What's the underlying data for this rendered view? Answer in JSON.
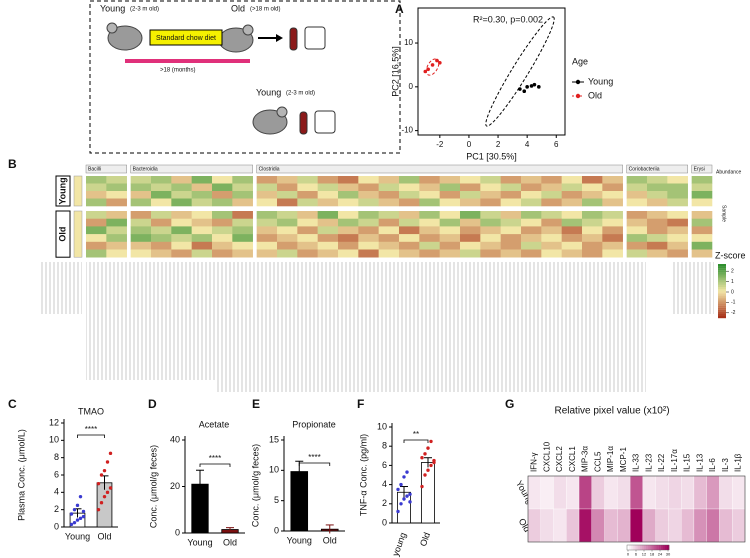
{
  "diagram": {
    "young_top": {
      "name": "Young",
      "age": "(2-3 m old)"
    },
    "old": {
      "name": "Old",
      "age": "(>18 m old)"
    },
    "diet": "Standard chow diet",
    "duration": ">18  (months)",
    "young_bottom": {
      "name": "Young",
      "age": "(2-3 m old)"
    }
  },
  "chart_data": [
    {
      "type": "scatter",
      "label": "A",
      "annotation": "R²=0.30, p=0.002",
      "x_label": "PC1  [30.5%]",
      "y_label": "PC2  [16.5%]",
      "xlim": [
        -3.5,
        6.6
      ],
      "ylim": [
        -11,
        18
      ],
      "xticks": [
        -2,
        0,
        2,
        4,
        6
      ],
      "yticks": [
        -10,
        0,
        10
      ],
      "legend_title": "Age",
      "series": [
        {
          "name": "Young",
          "color": "#000000",
          "x": [
            3.5,
            4.0,
            4.5,
            4.8,
            3.8,
            4.3
          ],
          "y": [
            -0.5,
            0,
            0.5,
            0,
            -1,
            0.2
          ]
        },
        {
          "name": "Old",
          "color": "#e02020",
          "x": [
            -2.8,
            -2.2,
            -2.5,
            -3.0,
            -2.0
          ],
          "y": [
            4,
            6,
            5,
            3.5,
            5.5
          ]
        }
      ]
    },
    {
      "type": "heatmap_groups",
      "label": "B",
      "row_groups": [
        "Young",
        "Old"
      ],
      "legend_title": "Z-score",
      "legend_subtitle": "Abundance",
      "side_label": "Sample",
      "zlim": [
        -2.5,
        2.5
      ],
      "zticks": [
        2,
        1,
        0,
        -1,
        -2
      ],
      "groups": [
        {
          "name": "Bacilli",
          "z": [
            [
              [
                1,
                0.5
              ],
              [
                0.5,
                1
              ],
              [
                -0.5,
                0
              ],
              [
                1,
                -1
              ]
            ],
            [
              [
                0.5,
                -0.5
              ],
              [
                -1,
                1.5
              ],
              [
                1.5,
                0.5
              ],
              [
                0,
                1
              ],
              [
                -1,
                -0.5
              ],
              [
                1,
                0
              ]
            ]
          ]
        },
        {
          "name": "Bacteroidia",
          "z": [
            [
              [
                0.5,
                1,
                -0.5,
                1.5,
                0,
                1
              ],
              [
                1,
                0.5,
                1,
                -0.5,
                1.5,
                0.5
              ],
              [
                -0.5,
                1.5,
                0.5,
                1,
                -1,
                1
              ],
              [
                1,
                0,
                1.5,
                0.5,
                1,
                -0.5
              ]
            ],
            [
              [
                -1,
                0.5,
                -0.5,
                0,
                1,
                -1.5
              ],
              [
                0.5,
                -1,
                0,
                -0.5,
                -1,
                0.5
              ],
              [
                1,
                0.5,
                1.5,
                0,
                0.5,
                1
              ],
              [
                1.5,
                1,
                0.5,
                1,
                0,
                1.5
              ],
              [
                -0.5,
                -1,
                0,
                -1.5,
                -0.5,
                0
              ],
              [
                0,
                -0.5,
                -1,
                0.5,
                -1,
                -0.5
              ]
            ]
          ]
        },
        {
          "name": "Clostridia",
          "z": [
            [
              [
                -1,
                -0.5,
                0.5,
                -1,
                -1.5,
                0,
                -0.5,
                1,
                -1,
                -0.5,
                0,
                0.5,
                -1,
                -0.5,
                -1,
                0,
                -1.5,
                -0.5
              ],
              [
                0.5,
                -1,
                0,
                0.5,
                -0.5,
                -1,
                0.5,
                0,
                -0.5,
                1,
                -1,
                0,
                0.5,
                -1,
                -0.5,
                0.5,
                0,
                -1
              ],
              [
                -0.5,
                0.5,
                -1,
                0,
                1,
                -0.5,
                -1,
                0.5,
                0,
                -1,
                0.5,
                -0.5,
                -1,
                0,
                0.5,
                -1,
                -0.5,
                0
              ],
              [
                0,
                -1.5,
                0.5,
                -0.5,
                0,
                0.5,
                -0.5,
                -1,
                1,
                0,
                -0.5,
                -1,
                0,
                0.5,
                -1,
                -0.5,
                1,
                -0.5
              ]
            ],
            [
              [
                1,
                0.5,
                -0.5,
                1.5,
                0,
                1,
                0.5,
                -0.5,
                1,
                0,
                1.5,
                0.5,
                -0.5,
                1,
                0.5,
                0,
                1,
                0.5
              ],
              [
                0.5,
                1,
                0,
                -0.5,
                1,
                0.5,
                -1,
                0.5,
                0,
                1,
                -0.5,
                1,
                0.5,
                0,
                -1,
                1,
                0.5,
                0
              ],
              [
                -0.5,
                0,
                -1,
                0.5,
                -0.5,
                -1,
                0,
                -1.5,
                -0.5,
                0,
                -1,
                -0.5,
                0,
                -1,
                -0.5,
                -1.5,
                0,
                -1
              ],
              [
                -1,
                -0.5,
                0,
                -1,
                -1.5,
                -0.5,
                -1,
                0,
                -1,
                -0.5,
                -1.5,
                0,
                -1,
                -0.5,
                0,
                -1,
                -0.5,
                -1.5
              ],
              [
                0,
                -1,
                -0.5,
                0,
                -1,
                0,
                -0.5,
                -1,
                0.5,
                -1,
                0,
                -0.5,
                -1,
                0.5,
                -0.5,
                0,
                -1,
                -0.5
              ],
              [
                -0.5,
                0.5,
                -1,
                -0.5,
                0,
                -1.5,
                0,
                -0.5,
                -1,
                -0.5,
                0.5,
                -1,
                -0.5,
                -1,
                0,
                -0.5,
                -1,
                0
              ]
            ]
          ]
        },
        {
          "name": "Coriobacteriia",
          "z": [
            [
              [
                1,
                0.5,
                0
              ],
              [
                0.5,
                1,
                1
              ],
              [
                -0.5,
                0.5,
                1
              ],
              [
                0,
                -0.5,
                0.5
              ]
            ],
            [
              [
                -1,
                -0.5,
                0
              ],
              [
                -0.5,
                -1,
                -1.5
              ],
              [
                0,
                -1,
                -0.5
              ],
              [
                1,
                0.5,
                0
              ],
              [
                -1,
                -1.5,
                -0.5
              ],
              [
                0.5,
                -0.5,
                -1
              ]
            ]
          ]
        },
        {
          "name": "Erysi",
          "z": [
            [
              [
                1
              ],
              [
                0.5
              ],
              [
                1.5
              ],
              [
                0
              ]
            ],
            [
              [
                -0.5
              ],
              [
                1
              ],
              [
                -1
              ],
              [
                0
              ],
              [
                1.5
              ],
              [
                -0.5
              ]
            ]
          ]
        }
      ]
    },
    {
      "type": "bar",
      "label": "C",
      "title": "TMAO",
      "y_label": "Plasma Conc. (μmol/L)",
      "categories": [
        "Young",
        "Old"
      ],
      "values": [
        1.6,
        5.1
      ],
      "errors": [
        0.5,
        0.8
      ],
      "colors": [
        "#ffffff",
        "#c8c8c8"
      ],
      "point_colors": [
        "#3a3ad0",
        "#d02020"
      ],
      "points": [
        [
          0.3,
          0.5,
          0.8,
          1,
          1.2,
          1.5,
          2,
          2.5,
          3.5,
          1.8
        ],
        [
          2,
          2.8,
          3.5,
          4,
          4.5,
          5,
          6,
          6.5,
          7.5,
          8.5
        ]
      ],
      "significance": "****",
      "ylim": [
        0,
        12
      ],
      "yticks": [
        0,
        2,
        4,
        6,
        8,
        10,
        12
      ]
    },
    {
      "type": "bar",
      "label": "D",
      "title": "Acetate",
      "y_label": "Conc. (μmol/g feces)",
      "categories": [
        "Young",
        "Old"
      ],
      "values": [
        21,
        1.5
      ],
      "errors": [
        6,
        0.8
      ],
      "colors": [
        "#000000",
        "#7a1010"
      ],
      "significance": "****",
      "ylim": [
        0,
        40
      ],
      "yticks": [
        0,
        20,
        40
      ]
    },
    {
      "type": "bar",
      "label": "E",
      "title": "Propionate",
      "y_label": "Conc. (μmol/g feces)",
      "categories": [
        "Young",
        "Old"
      ],
      "values": [
        9.8,
        0.3
      ],
      "errors": [
        1.7,
        0.7
      ],
      "colors": [
        "#000000",
        "#7a1010"
      ],
      "significance": "****",
      "ylim": [
        0,
        15
      ],
      "yticks": [
        0,
        5,
        10,
        15
      ]
    },
    {
      "type": "bar",
      "label": "F",
      "y_label": "TNF-α Conc. (pg/ml)",
      "categories": [
        "young",
        "Old"
      ],
      "values": [
        3.2,
        6.3
      ],
      "errors": [
        0.6,
        0.5
      ],
      "colors": [
        "#ffffff",
        "#ffffff"
      ],
      "point_colors": [
        "#3a3ad0",
        "#d02020"
      ],
      "points": [
        [
          1.2,
          2,
          2.5,
          2.8,
          3,
          3.5,
          4,
          4.8,
          5.3,
          2.2
        ],
        [
          3.8,
          5,
          5.5,
          6,
          6.3,
          6.8,
          7.2,
          7.8,
          8.5,
          6.5
        ]
      ],
      "significance": "**",
      "ylim": [
        0,
        10
      ],
      "yticks": [
        0,
        2,
        4,
        6,
        8,
        10
      ]
    },
    {
      "type": "heatmap",
      "label": "G",
      "title": "Relative pixel value (x10²)",
      "columns": [
        "IFN-γ",
        "CXCL10",
        "CXCL2",
        "CXCL1",
        "MIP-3α",
        "CCL5",
        "MIP-1α",
        "MCP-1",
        "IL-33",
        "IL-23",
        "IL-22",
        "IL-17α",
        "IL-15",
        "IL-13",
        "IL-6",
        "IL-3",
        "IL-1β"
      ],
      "rows": [
        "Young",
        "Old"
      ],
      "values": [
        [
          3,
          2,
          4,
          3,
          22,
          6,
          3,
          4,
          20,
          3,
          4,
          5,
          4,
          8,
          12,
          4,
          3
        ],
        [
          6,
          4,
          3,
          7,
          28,
          14,
          8,
          9,
          30,
          10,
          6,
          5,
          8,
          13,
          16,
          8,
          6
        ]
      ],
      "zlim": [
        0,
        30
      ],
      "zticks": [
        0,
        6,
        12,
        18,
        24,
        30
      ],
      "color": "#a0005a"
    }
  ]
}
